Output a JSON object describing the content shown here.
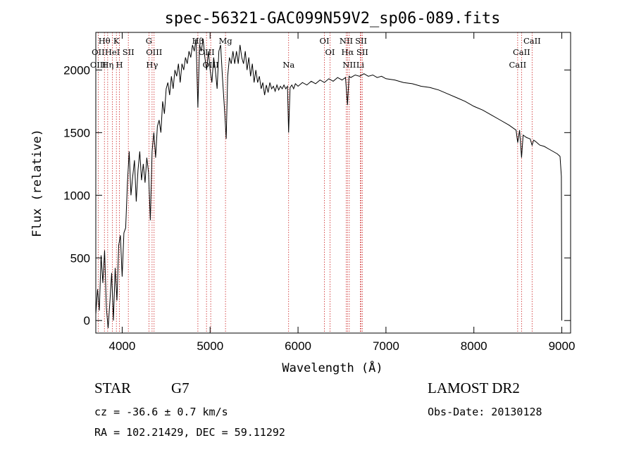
{
  "chart_data": {
    "type": "line",
    "title": "spec-56321-GAC099N59V2_sp06-089.fits",
    "xlabel": "Wavelength (Å)",
    "ylabel": "Flux (relative)",
    "xlim": [
      3700,
      9100
    ],
    "ylim": [
      -100,
      2300
    ],
    "x_ticks": [
      4000,
      5000,
      6000,
      7000,
      8000,
      9000
    ],
    "y_ticks": [
      0,
      500,
      1000,
      1500,
      2000
    ],
    "grid": false,
    "series": [
      {
        "points": [
          [
            3700,
            50
          ],
          [
            3720,
            250
          ],
          [
            3740,
            80
          ],
          [
            3760,
            520
          ],
          [
            3780,
            300
          ],
          [
            3800,
            560
          ],
          [
            3820,
            100
          ],
          [
            3840,
            -60
          ],
          [
            3860,
            150
          ],
          [
            3880,
            380
          ],
          [
            3900,
            0
          ],
          [
            3920,
            420
          ],
          [
            3940,
            160
          ],
          [
            3960,
            600
          ],
          [
            3980,
            680
          ],
          [
            4000,
            350
          ],
          [
            4020,
            700
          ],
          [
            4040,
            740
          ],
          [
            4060,
            1100
          ],
          [
            4080,
            1350
          ],
          [
            4100,
            1000
          ],
          [
            4120,
            1150
          ],
          [
            4140,
            1280
          ],
          [
            4160,
            950
          ],
          [
            4180,
            1200
          ],
          [
            4200,
            1350
          ],
          [
            4220,
            1120
          ],
          [
            4240,
            1250
          ],
          [
            4260,
            1100
          ],
          [
            4280,
            1300
          ],
          [
            4300,
            1180
          ],
          [
            4320,
            800
          ],
          [
            4340,
            1350
          ],
          [
            4360,
            1500
          ],
          [
            4380,
            1300
          ],
          [
            4400,
            1550
          ],
          [
            4420,
            1600
          ],
          [
            4440,
            1500
          ],
          [
            4460,
            1750
          ],
          [
            4480,
            1650
          ],
          [
            4500,
            1850
          ],
          [
            4520,
            1900
          ],
          [
            4540,
            1800
          ],
          [
            4560,
            1950
          ],
          [
            4580,
            1850
          ],
          [
            4600,
            2000
          ],
          [
            4620,
            1950
          ],
          [
            4640,
            2050
          ],
          [
            4660,
            1900
          ],
          [
            4680,
            2050
          ],
          [
            4700,
            2000
          ],
          [
            4720,
            2100
          ],
          [
            4740,
            2050
          ],
          [
            4760,
            2150
          ],
          [
            4780,
            2100
          ],
          [
            4800,
            2200
          ],
          [
            4820,
            2150
          ],
          [
            4840,
            2250
          ],
          [
            4861,
            1700
          ],
          [
            4880,
            2200
          ],
          [
            4900,
            2150
          ],
          [
            4920,
            2250
          ],
          [
            4940,
            2100
          ],
          [
            4960,
            2000
          ],
          [
            4980,
            2150
          ],
          [
            5000,
            2000
          ],
          [
            5020,
            1900
          ],
          [
            5040,
            2100
          ],
          [
            5060,
            2000
          ],
          [
            5080,
            1850
          ],
          [
            5100,
            2150
          ],
          [
            5120,
            2200
          ],
          [
            5140,
            1950
          ],
          [
            5167,
            1650
          ],
          [
            5183,
            1450
          ],
          [
            5200,
            1950
          ],
          [
            5220,
            2100
          ],
          [
            5240,
            2050
          ],
          [
            5260,
            2150
          ],
          [
            5280,
            2050
          ],
          [
            5300,
            2150
          ],
          [
            5320,
            2050
          ],
          [
            5340,
            2200
          ],
          [
            5360,
            2100
          ],
          [
            5380,
            2050
          ],
          [
            5400,
            2150
          ],
          [
            5420,
            2000
          ],
          [
            5440,
            2100
          ],
          [
            5460,
            1950
          ],
          [
            5480,
            2050
          ],
          [
            5500,
            1900
          ],
          [
            5520,
            2000
          ],
          [
            5540,
            1900
          ],
          [
            5560,
            1950
          ],
          [
            5580,
            1850
          ],
          [
            5600,
            1900
          ],
          [
            5620,
            1800
          ],
          [
            5640,
            1880
          ],
          [
            5660,
            1820
          ],
          [
            5680,
            1900
          ],
          [
            5700,
            1850
          ],
          [
            5720,
            1870
          ],
          [
            5740,
            1830
          ],
          [
            5760,
            1880
          ],
          [
            5780,
            1840
          ],
          [
            5800,
            1870
          ],
          [
            5820,
            1850
          ],
          [
            5840,
            1880
          ],
          [
            5860,
            1850
          ],
          [
            5880,
            1870
          ],
          [
            5893,
            1500
          ],
          [
            5910,
            1860
          ],
          [
            5930,
            1880
          ],
          [
            5950,
            1850
          ],
          [
            5970,
            1890
          ],
          [
            6000,
            1870
          ],
          [
            6050,
            1900
          ],
          [
            6100,
            1880
          ],
          [
            6150,
            1910
          ],
          [
            6200,
            1890
          ],
          [
            6250,
            1920
          ],
          [
            6300,
            1900
          ],
          [
            6350,
            1930
          ],
          [
            6400,
            1910
          ],
          [
            6450,
            1940
          ],
          [
            6500,
            1920
          ],
          [
            6540,
            1940
          ],
          [
            6563,
            1720
          ],
          [
            6580,
            1950
          ],
          [
            6600,
            1940
          ],
          [
            6650,
            1960
          ],
          [
            6700,
            1950
          ],
          [
            6750,
            1970
          ],
          [
            6800,
            1950
          ],
          [
            6850,
            1960
          ],
          [
            6900,
            1940
          ],
          [
            6950,
            1950
          ],
          [
            7000,
            1930
          ],
          [
            7100,
            1920
          ],
          [
            7200,
            1900
          ],
          [
            7300,
            1890
          ],
          [
            7400,
            1870
          ],
          [
            7500,
            1860
          ],
          [
            7600,
            1840
          ],
          [
            7700,
            1810
          ],
          [
            7800,
            1780
          ],
          [
            7900,
            1750
          ],
          [
            8000,
            1710
          ],
          [
            8100,
            1680
          ],
          [
            8200,
            1640
          ],
          [
            8300,
            1600
          ],
          [
            8400,
            1560
          ],
          [
            8480,
            1520
          ],
          [
            8498,
            1420
          ],
          [
            8520,
            1520
          ],
          [
            8542,
            1300
          ],
          [
            8560,
            1480
          ],
          [
            8600,
            1460
          ],
          [
            8640,
            1450
          ],
          [
            8662,
            1400
          ],
          [
            8680,
            1440
          ],
          [
            8700,
            1430
          ],
          [
            8750,
            1400
          ],
          [
            8800,
            1390
          ],
          [
            8850,
            1370
          ],
          [
            8900,
            1350
          ],
          [
            8950,
            1330
          ],
          [
            8980,
            1310
          ],
          [
            8995,
            1150
          ],
          [
            9000,
            0
          ]
        ]
      }
    ],
    "line_color": "#000000",
    "marker_color": "#cc2222",
    "line_markers": [
      {
        "label": "Hθ",
        "x": 3798,
        "row": 1
      },
      {
        "label": "OII",
        "x": 3727,
        "row": 2
      },
      {
        "label": "OIII",
        "x": 3727,
        "row": 3
      },
      {
        "label": "K",
        "x": 3934,
        "row": 1
      },
      {
        "label": "HeI",
        "x": 3889,
        "row": 2
      },
      {
        "label": "SII",
        "x": 4070,
        "row": 2
      },
      {
        "label": "Hη",
        "x": 3835,
        "row": 3
      },
      {
        "label": "H",
        "x": 3969,
        "row": 3
      },
      {
        "label": "G",
        "x": 4304,
        "row": 1
      },
      {
        "label": "OIII",
        "x": 4363,
        "row": 2
      },
      {
        "label": "Hγ",
        "x": 4340,
        "row": 3
      },
      {
        "label": "Hβ",
        "x": 4861,
        "row": 1
      },
      {
        "label": "OIII",
        "x": 4959,
        "row": 2
      },
      {
        "label": "OIII",
        "x": 5007,
        "row": 3
      },
      {
        "label": "Mg",
        "x": 5175,
        "row": 1
      },
      {
        "label": "Na",
        "x": 5893,
        "row": 3
      },
      {
        "label": "OI",
        "x": 6300,
        "row": 1
      },
      {
        "label": "OI",
        "x": 6364,
        "row": 2
      },
      {
        "label": "NII",
        "x": 6548,
        "row": 1
      },
      {
        "label": "SII",
        "x": 6717,
        "row": 1
      },
      {
        "label": "Hα",
        "x": 6563,
        "row": 2
      },
      {
        "label": "SII",
        "x": 6731,
        "row": 2
      },
      {
        "label": "NII",
        "x": 6583,
        "row": 3
      },
      {
        "label": "Li",
        "x": 6708,
        "row": 3
      },
      {
        "label": "CaII",
        "x": 8662,
        "row": 1
      },
      {
        "label": "CaII",
        "x": 8542,
        "row": 2
      },
      {
        "label": "CaII",
        "x": 8498,
        "row": 3
      }
    ]
  },
  "info": {
    "class": "STAR",
    "subclass": "G7",
    "survey": "LAMOST DR2",
    "cz": "cz = -36.6 ± 0.7 km/s",
    "obs_date": "Obs-Date: 20130128",
    "coords": "RA = 102.21429, DEC =  59.11292"
  }
}
